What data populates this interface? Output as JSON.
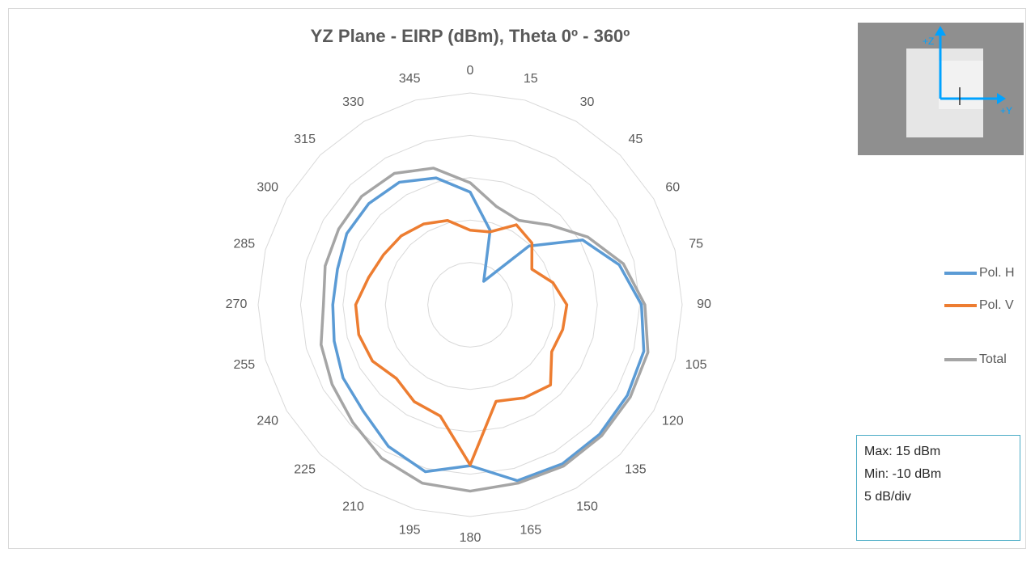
{
  "chart_data": {
    "type": "radar",
    "title": "YZ Plane - EIRP (dBm), Theta 0º - 360º",
    "categories": [
      "0",
      "15",
      "30",
      "45",
      "60",
      "75",
      "90",
      "105",
      "120",
      "135",
      "150",
      "165",
      "180",
      "195",
      "210",
      "225",
      "240",
      "255",
      "270",
      "285",
      "300",
      "315",
      "330",
      "345"
    ],
    "series": [
      {
        "name": "Pol. H",
        "color": "#5b9bd5",
        "values": [
          3.3,
          -0.9,
          -6.8,
          -0.2,
          5.3,
          8.2,
          10.2,
          11.2,
          11.4,
          11.6,
          11.7,
          11.5,
          9.0,
          10.4,
          9.3,
          7.8,
          7.3,
          6.6,
          6.2,
          6.2,
          6.8,
          6.9,
          6.7,
          5.5
        ]
      },
      {
        "name": "Pol. V",
        "color": "#ed7d31",
        "values": [
          -1.2,
          -1.1,
          0.9,
          0.3,
          -1.6,
          0.1,
          1.4,
          1.3,
          1.1,
          3.4,
          2.7,
          1.8,
          8.9,
          3.6,
          3.2,
          2.3,
          3.3,
          3.6,
          3.5,
          2.4,
          1.8,
          1.5,
          1.0,
          0.3
        ]
      },
      {
        "name": "Total",
        "color": "#a5a5a5",
        "values": [
          4.4,
          2.0,
          1.5,
          3.3,
          6.0,
          8.7,
          10.6,
          11.7,
          11.8,
          11.9,
          12.0,
          11.8,
          12.0,
          11.8,
          10.9,
          9.6,
          8.8,
          8.2,
          7.3,
          7.7,
          7.9,
          8.1,
          7.9,
          6.7
        ]
      }
    ],
    "rlim": [
      -10,
      15
    ],
    "rticks": [
      -10,
      -5,
      0,
      5,
      10,
      15
    ],
    "grid": true,
    "legend": "right",
    "annotations": [
      "Max: 15 dBm",
      "Min: -10 dBm",
      "5 dB/div"
    ],
    "inset": {
      "labels": [
        "+Z",
        "+Y"
      ]
    }
  }
}
